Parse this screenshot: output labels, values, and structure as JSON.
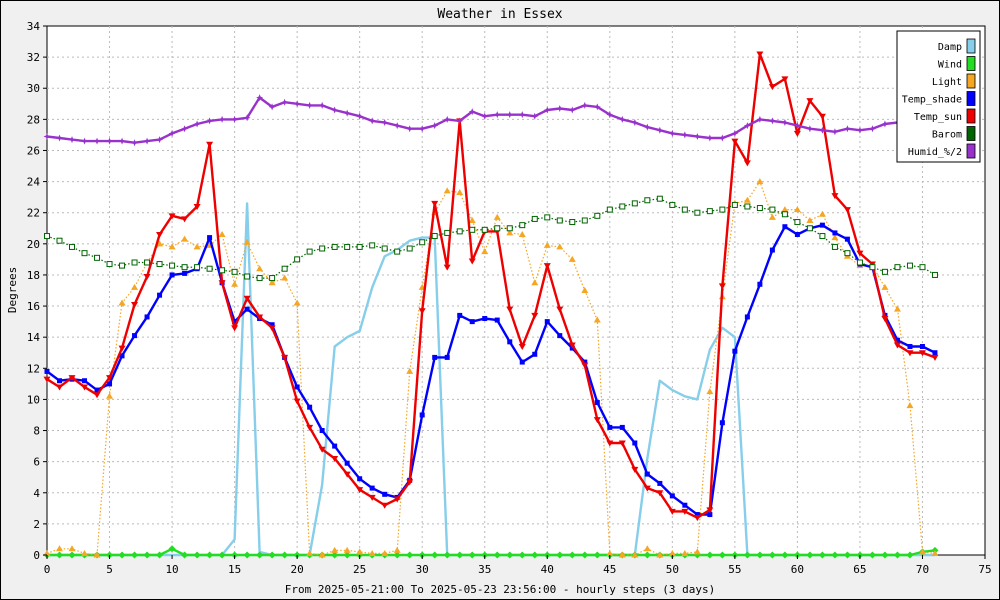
{
  "chart_data": {
    "type": "line",
    "title": "Weather in Essex",
    "xlabel": "From 2025-05-21:00 To 2025-05-23 23:56:00 - hourly steps (3 days)",
    "ylabel": "Degrees",
    "xlim": [
      0,
      75
    ],
    "ylim": [
      0,
      34
    ],
    "xticks": [
      0,
      5,
      10,
      15,
      20,
      25,
      30,
      35,
      40,
      45,
      50,
      55,
      60,
      65,
      70,
      75
    ],
    "yticks": [
      0,
      2,
      4,
      6,
      8,
      10,
      12,
      14,
      16,
      18,
      20,
      22,
      24,
      26,
      28,
      30,
      32,
      34
    ],
    "grid": true,
    "legend_position": "top-right",
    "x": [
      0,
      1,
      2,
      3,
      4,
      5,
      6,
      7,
      8,
      9,
      10,
      11,
      12,
      13,
      14,
      15,
      16,
      17,
      18,
      19,
      20,
      21,
      22,
      23,
      24,
      25,
      26,
      27,
      28,
      29,
      30,
      31,
      32,
      33,
      34,
      35,
      36,
      37,
      38,
      39,
      40,
      41,
      42,
      43,
      44,
      45,
      46,
      47,
      48,
      49,
      50,
      51,
      52,
      53,
      54,
      55,
      56,
      57,
      58,
      59,
      60,
      61,
      62,
      63,
      64,
      65,
      66,
      67,
      68,
      69,
      70,
      71
    ],
    "series": [
      {
        "name": "Damp",
        "color": "#87ceeb",
        "style": "solid",
        "marker": "none",
        "values": [
          0,
          0,
          0,
          0,
          0,
          0,
          0,
          0,
          0,
          0,
          0,
          0,
          0,
          0,
          0,
          1,
          22.6,
          0.2,
          0,
          0,
          0,
          0,
          4.5,
          13.4,
          14.0,
          14.4,
          17.2,
          19.2,
          19.6,
          20.2,
          20.4,
          20.4,
          0,
          0,
          0,
          0,
          0,
          0,
          0,
          0,
          0,
          0,
          0,
          0,
          0,
          0,
          0,
          0,
          6.2,
          11.2,
          10.6,
          10.2,
          10.0,
          13.2,
          14.6,
          14.0,
          0,
          0,
          0,
          0,
          0,
          0,
          0,
          0,
          0,
          0,
          0,
          0,
          0,
          0,
          0,
          0
        ]
      },
      {
        "name": "Wind",
        "color": "#22dd22",
        "style": "solid",
        "marker": "diamond",
        "values": [
          0,
          0,
          0,
          0,
          0,
          0,
          0,
          0,
          0,
          0,
          0.4,
          0,
          0,
          0,
          0,
          0,
          0,
          0,
          0,
          0,
          0,
          0,
          0,
          0,
          0,
          0,
          0,
          0,
          0,
          0,
          0,
          0,
          0,
          0,
          0,
          0,
          0,
          0,
          0,
          0,
          0,
          0,
          0,
          0,
          0,
          0,
          0,
          0,
          0,
          0,
          0,
          0,
          0,
          0,
          0,
          0,
          0,
          0,
          0,
          0,
          0,
          0,
          0,
          0,
          0,
          0,
          0,
          0,
          0,
          0,
          0.2,
          0.3
        ]
      },
      {
        "name": "Light",
        "color": "#f5a623",
        "style": "dotted",
        "marker": "triangle",
        "values": [
          0.1,
          0.4,
          0.4,
          0.1,
          0,
          10.2,
          16.2,
          17.2,
          18.8,
          20.0,
          19.8,
          20.3,
          19.8,
          19.9,
          20.6,
          17.4,
          20.1,
          18.4,
          17.5,
          17.8,
          16.2,
          0.1,
          0,
          0.3,
          0.3,
          0.2,
          0.1,
          0.1,
          0.3,
          11.8,
          17.2,
          22.0,
          23.4,
          23.3,
          21.5,
          19.5,
          21.7,
          20.7,
          20.6,
          17.5,
          19.9,
          19.8,
          19.0,
          17.0,
          15.1,
          0.1,
          0,
          0,
          0.4,
          0,
          0.1,
          0.1,
          0.2,
          10.5,
          16.6,
          22.6,
          22.8,
          24.0,
          21.7,
          22.2,
          22.2,
          21.5,
          21.9,
          20.4,
          19.2,
          18.6,
          18.6,
          17.2,
          15.8,
          9.6,
          0.2,
          0.1
        ]
      },
      {
        "name": "Temp_shade",
        "color": "#0000ff",
        "style": "solid",
        "marker": "square",
        "values": [
          11.8,
          11.2,
          11.3,
          11.2,
          10.6,
          11.0,
          12.8,
          14.1,
          15.3,
          16.7,
          18.0,
          18.1,
          18.4,
          20.4,
          17.5,
          15.0,
          15.8,
          15.2,
          14.8,
          12.7,
          10.8,
          9.5,
          8.0,
          7.0,
          5.9,
          4.9,
          4.3,
          3.9,
          3.7,
          4.8,
          9.0,
          12.7,
          12.7,
          15.4,
          15.0,
          15.2,
          15.1,
          13.7,
          12.4,
          12.9,
          15.0,
          14.1,
          13.3,
          12.4,
          9.8,
          8.2,
          8.2,
          7.2,
          5.2,
          4.6,
          3.8,
          3.2,
          2.6,
          2.6,
          8.5,
          13.1,
          15.3,
          17.4,
          19.6,
          21.1,
          20.6,
          21.0,
          21.2,
          20.7,
          20.3,
          18.7,
          18.5,
          15.4,
          13.8,
          13.4,
          13.4,
          13.0
        ]
      },
      {
        "name": "Temp_sun",
        "color": "#ee0000",
        "style": "solid",
        "marker": "triangle-down",
        "values": [
          11.3,
          10.8,
          11.4,
          10.8,
          10.3,
          11.4,
          13.3,
          16.1,
          17.9,
          20.6,
          21.8,
          21.6,
          22.4,
          26.4,
          17.5,
          14.6,
          16.5,
          15.3,
          14.6,
          12.7,
          9.9,
          8.2,
          6.8,
          6.2,
          5.2,
          4.2,
          3.7,
          3.2,
          3.6,
          4.7,
          15.7,
          22.6,
          18.5,
          27.9,
          18.9,
          20.8,
          20.8,
          15.8,
          13.4,
          15.4,
          18.6,
          15.8,
          13.5,
          12.2,
          8.7,
          7.2,
          7.2,
          5.5,
          4.3,
          4.0,
          2.8,
          2.8,
          2.4,
          2.9,
          17.3,
          26.6,
          25.2,
          32.2,
          30.1,
          30.6,
          27.1,
          29.2,
          28.2,
          23.1,
          22.2,
          19.4,
          18.7,
          15.2,
          13.5,
          13.0,
          13.0,
          12.7
        ]
      },
      {
        "name": "Barom",
        "color": "#006400",
        "style": "dotted",
        "marker": "open-square",
        "values": [
          20.5,
          20.2,
          19.8,
          19.4,
          19.1,
          18.7,
          18.6,
          18.8,
          18.8,
          18.7,
          18.6,
          18.5,
          18.5,
          18.4,
          18.3,
          18.2,
          17.9,
          17.8,
          17.8,
          18.4,
          19.0,
          19.5,
          19.7,
          19.8,
          19.8,
          19.8,
          19.9,
          19.7,
          19.5,
          19.7,
          20.1,
          20.5,
          20.7,
          20.8,
          20.9,
          20.9,
          21.0,
          21.0,
          21.2,
          21.6,
          21.7,
          21.5,
          21.4,
          21.5,
          21.8,
          22.2,
          22.4,
          22.6,
          22.8,
          22.9,
          22.5,
          22.2,
          22.0,
          22.1,
          22.2,
          22.5,
          22.4,
          22.3,
          22.2,
          21.9,
          21.4,
          21.0,
          20.5,
          19.8,
          19.4,
          18.8,
          18.5,
          18.2,
          18.5,
          18.6,
          18.5,
          18.0
        ]
      },
      {
        "name": "Humid_%/2",
        "color": "#9932cc",
        "style": "solid",
        "marker": "star",
        "values": [
          26.9,
          26.8,
          26.7,
          26.6,
          26.6,
          26.6,
          26.6,
          26.5,
          26.6,
          26.7,
          27.1,
          27.4,
          27.7,
          27.9,
          28.0,
          28.0,
          28.1,
          29.4,
          28.8,
          29.1,
          29.0,
          28.9,
          28.9,
          28.6,
          28.4,
          28.2,
          27.9,
          27.8,
          27.6,
          27.4,
          27.4,
          27.6,
          28.0,
          27.9,
          28.5,
          28.2,
          28.3,
          28.3,
          28.3,
          28.2,
          28.6,
          28.7,
          28.6,
          28.9,
          28.8,
          28.3,
          28.0,
          27.8,
          27.5,
          27.3,
          27.1,
          27.0,
          26.9,
          26.8,
          26.8,
          27.1,
          27.6,
          28.0,
          27.9,
          27.8,
          27.6,
          27.4,
          27.3,
          27.2,
          27.4,
          27.3,
          27.4,
          27.7,
          27.8,
          28.3,
          28.2,
          28.1
        ]
      }
    ]
  }
}
